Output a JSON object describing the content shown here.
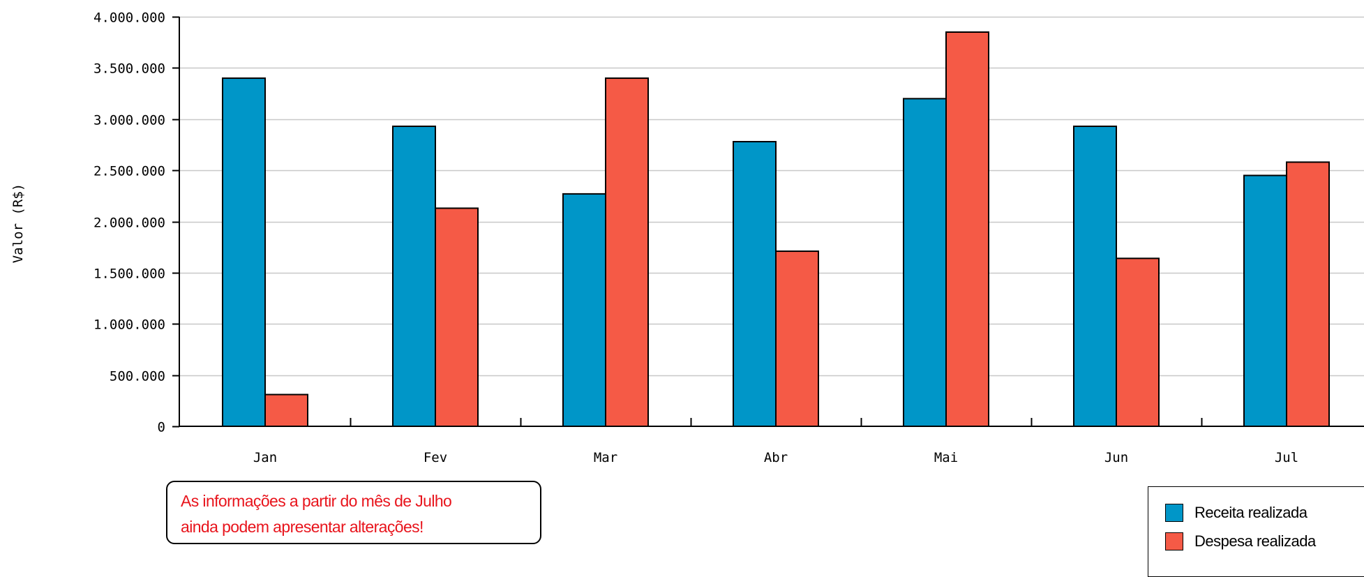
{
  "chart_data": {
    "type": "bar",
    "categories": [
      "Jan",
      "Fev",
      "Mar",
      "Abr",
      "Mai",
      "Jun",
      "Jul"
    ],
    "series": [
      {
        "name": "Receita realizada",
        "color": "#0096c8",
        "values": [
          3400000,
          2930000,
          2270000,
          2780000,
          3200000,
          2930000,
          2450000
        ]
      },
      {
        "name": "Despesa realizada",
        "color": "#f55a46",
        "values": [
          310000,
          2130000,
          3400000,
          1710000,
          3850000,
          1640000,
          2580000
        ]
      }
    ],
    "ylabel": "Valor (R$)",
    "xlabel": "",
    "ylim": [
      0,
      4000000
    ],
    "yticks": [
      0,
      500000,
      1000000,
      1500000,
      2000000,
      2500000,
      3000000,
      3500000,
      4000000
    ],
    "ytick_labels": [
      "0",
      "500.000",
      "1.000.000",
      "1.500.000",
      "2.000.000",
      "2.500.000",
      "3.000.000",
      "3.500.000",
      "4.000.000"
    ],
    "grid": true,
    "legend_position": "bottom-right"
  },
  "note": {
    "line1": "As informações a partir do mês de Julho",
    "line2": "ainda podem apresentar alterações!"
  },
  "legend": {
    "receita": "Receita realizada",
    "despesa": "Despesa realizada"
  }
}
